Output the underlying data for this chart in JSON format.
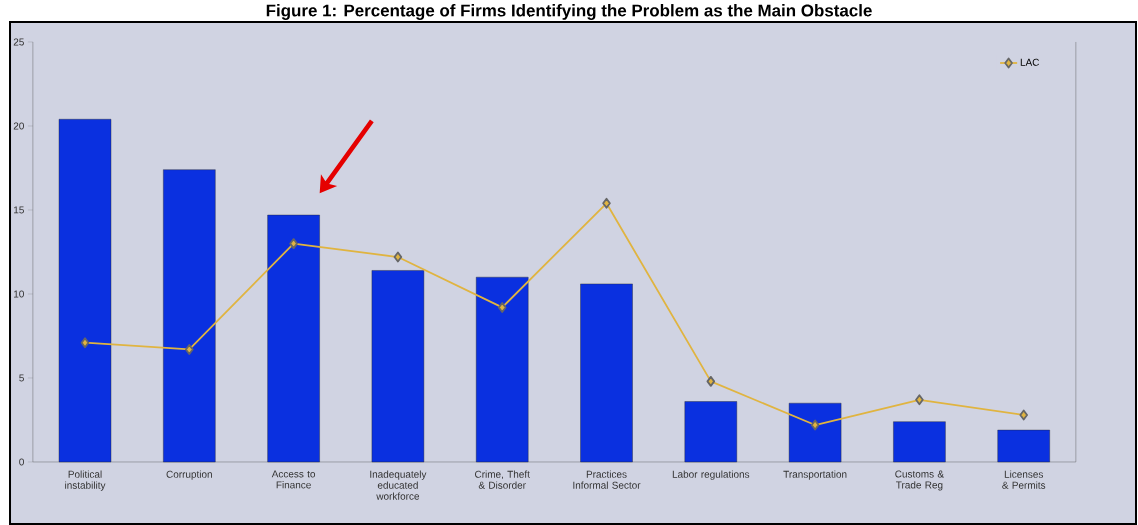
{
  "chart_data": {
    "type": "bar",
    "title": "Figure 1: Percentage of Firms Identifying the Problem as the Main Obstacle",
    "categories": [
      "Political instability",
      "Corruption",
      "Access to Finance",
      "Inadequately educated workforce",
      "Crime, Theft & Disorder",
      "Practices Informal Sector",
      "Labor regulations",
      "Transportation",
      "Customs & Trade Reg",
      "Licenses & Permits"
    ],
    "series": [
      {
        "type": "bar",
        "color": "#0a30e0",
        "values": [
          20.4,
          17.4,
          14.7,
          11.4,
          11.0,
          10.6,
          3.6,
          3.5,
          2.4,
          1.9
        ]
      },
      {
        "type": "line",
        "name": "LAC",
        "color": "#e0b440",
        "marker": "diamond",
        "values": [
          7.1,
          6.7,
          13.0,
          12.2,
          9.2,
          15.4,
          4.8,
          2.2,
          3.7,
          2.8
        ]
      }
    ],
    "ylim": [
      0,
      25
    ],
    "yticks": [
      0,
      5,
      10,
      15,
      20,
      25
    ],
    "grid": false,
    "legend": "top right"
  }
}
